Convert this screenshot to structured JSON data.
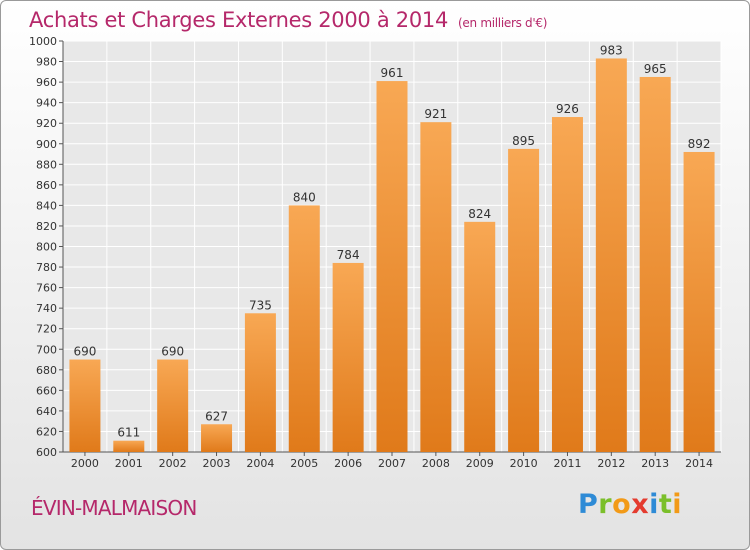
{
  "title": "Achats et Charges Externes 2000 à 2014",
  "unit": "(en milliers d'€)",
  "place": "ÉVIN-MALMAISON",
  "logo": {
    "letters": [
      "P",
      "r",
      "o",
      "x",
      "i",
      "t",
      "i"
    ],
    "colors": [
      "#2e8bd6",
      "#7bbf2a",
      "#f29a17",
      "#e43b2f",
      "#2e8bd6",
      "#7bbf2a",
      "#f29a17"
    ]
  },
  "colors": {
    "bar_light": "#f8a854",
    "bar_dark": "#e07a1a",
    "title": "#b5286a",
    "grid": "#ffffff"
  },
  "chart_data": {
    "type": "bar",
    "title": "Achats et Charges Externes 2000 à 2014",
    "xlabel": "",
    "ylabel": "",
    "categories": [
      "2000",
      "2001",
      "2002",
      "2003",
      "2004",
      "2005",
      "2006",
      "2007",
      "2008",
      "2009",
      "2010",
      "2011",
      "2012",
      "2013",
      "2014"
    ],
    "values": [
      690,
      611,
      690,
      627,
      735,
      840,
      784,
      961,
      921,
      824,
      895,
      926,
      983,
      965,
      892
    ],
    "ylim": [
      600,
      1000
    ],
    "yticks": [
      600,
      620,
      640,
      660,
      680,
      700,
      720,
      740,
      760,
      780,
      800,
      820,
      840,
      860,
      880,
      900,
      920,
      940,
      960,
      980,
      1000
    ],
    "grid": true,
    "legend": "none"
  }
}
